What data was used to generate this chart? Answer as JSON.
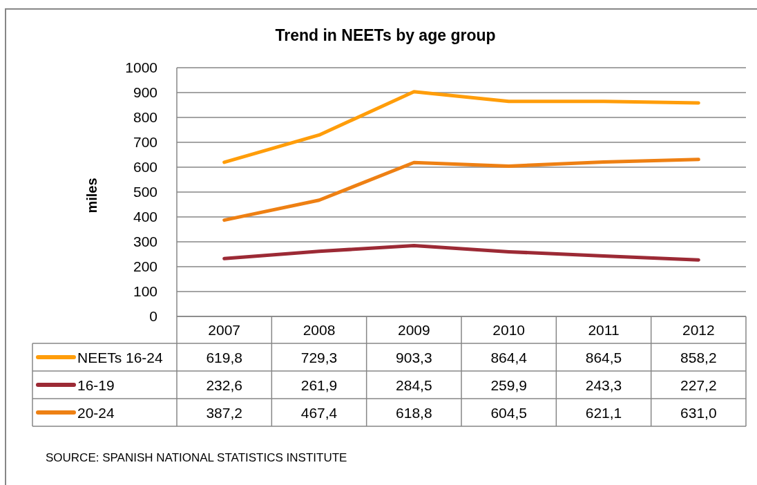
{
  "chart_data": {
    "type": "line",
    "title": "Trend in NEETs by age group",
    "ylabel": "miles",
    "categories": [
      "2007",
      "2008",
      "2009",
      "2010",
      "2011",
      "2012"
    ],
    "series": [
      {
        "name": "NEETs 16-24",
        "color": "#ff9d0a",
        "values": [
          619.8,
          729.3,
          903.3,
          864.4,
          864.5,
          858.2
        ],
        "value_labels": [
          "619,8",
          "729,3",
          "903,3",
          "864,4",
          "864,5",
          "858,2"
        ]
      },
      {
        "name": "16-19",
        "color": "#9c2a35",
        "values": [
          232.6,
          261.9,
          284.5,
          259.9,
          243.3,
          227.2
        ],
        "value_labels": [
          "232,6",
          "261,9",
          "284,5",
          "259,9",
          "243,3",
          "227,2"
        ]
      },
      {
        "name": "20-24",
        "color": "#ee8013",
        "values": [
          387.2,
          467.4,
          618.8,
          604.5,
          621.1,
          631.0
        ],
        "value_labels": [
          "387,2",
          "467,4",
          "618,8",
          "604,5",
          "621,1",
          "631,0"
        ]
      }
    ],
    "ylim": [
      0,
      1000
    ],
    "yticks": [
      0,
      100,
      200,
      300,
      400,
      500,
      600,
      700,
      800,
      900,
      1000
    ],
    "grid": "y",
    "legend": "bottom left",
    "marker": "none",
    "line_style": "solid",
    "annotations": [
      "SOURCE: SPANISH NATIONAL STATISTICS INSTITUTE"
    ]
  }
}
